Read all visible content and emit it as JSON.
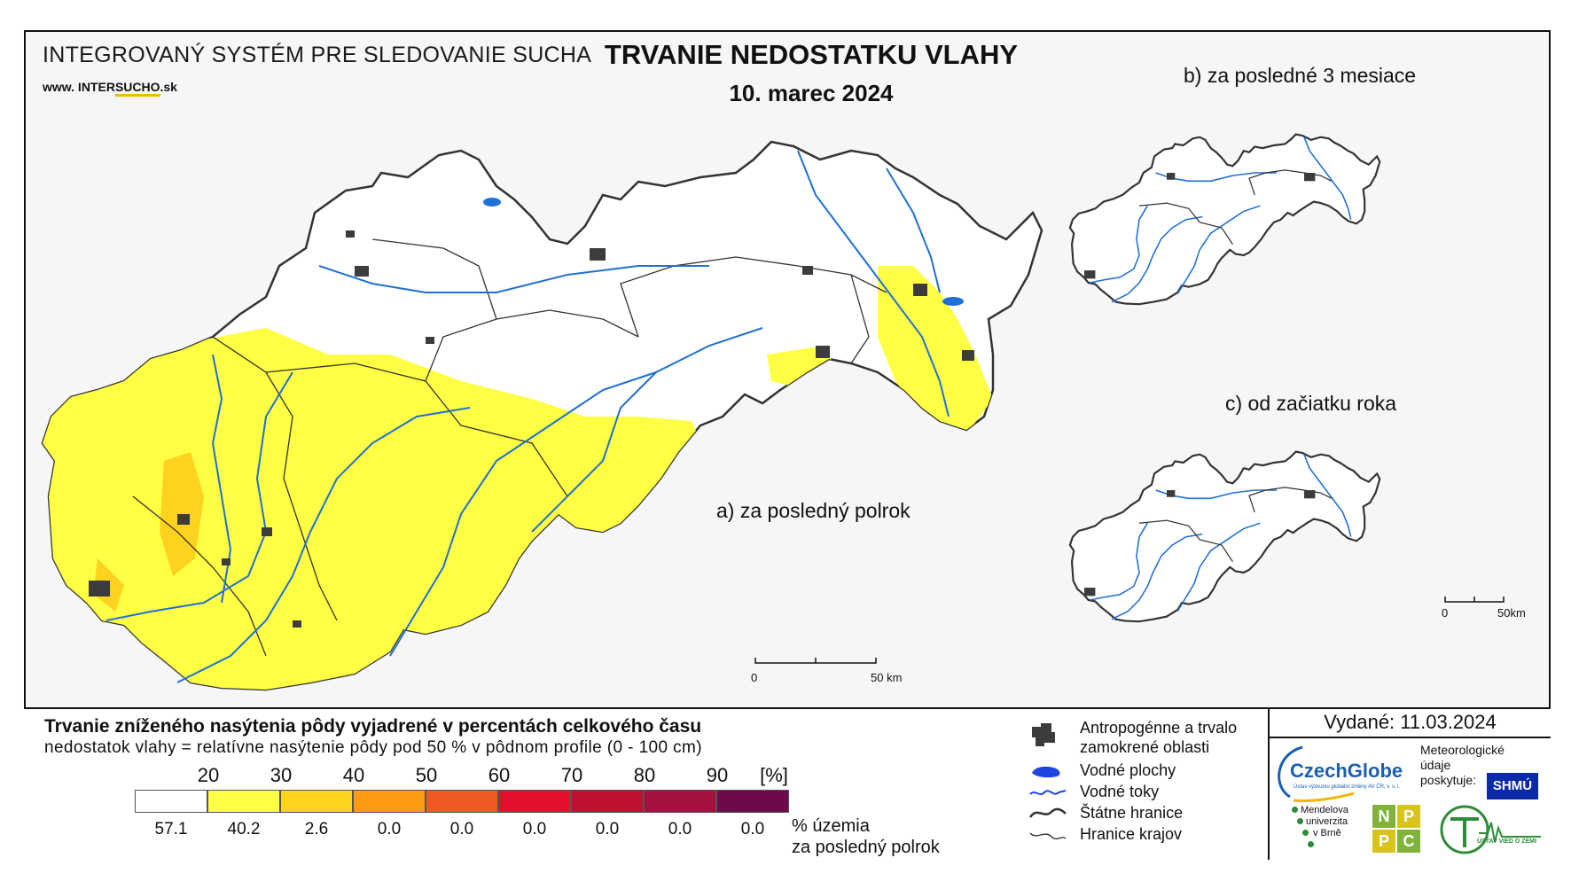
{
  "header": {
    "org_title": "INTEGROVANÝ SYSTÉM PRE SLEDOVANIE SUCHA",
    "url_prefix": "www. INTER",
    "url_highlight": "SUCHO",
    "url_suffix": ".sk",
    "map_title": "TRVANIE NEDOSTATKU VLAHY",
    "map_date": "10. marec 2024"
  },
  "panels": {
    "a": "a) za posledný polrok",
    "b": "b) za posledné 3 mesiace",
    "c": "c) od začiatku roka"
  },
  "scales": {
    "main": {
      "zero": "0",
      "end": "50 km"
    },
    "small": {
      "zero": "0",
      "end": "50km"
    }
  },
  "legend": {
    "title": "Trvanie zníženého nasýtenia pôdy vyjadrené v percentách celkového času",
    "subtitle": "nedostatok vlahy = relatívne nasýtenie pôdy pod 50 % v pôdnom profile (0 - 100 cm)",
    "ticks": [
      "20",
      "30",
      "40",
      "50",
      "60",
      "70",
      "80",
      "90",
      "[%]"
    ],
    "classes": [
      {
        "color": "#ffffff",
        "pct": "57.1"
      },
      {
        "color": "#ffff44",
        "pct": "40.2"
      },
      {
        "color": "#ffd21f",
        "pct": "2.6"
      },
      {
        "color": "#ff9a14",
        "pct": "0.0"
      },
      {
        "color": "#ef5a22",
        "pct": "0.0"
      },
      {
        "color": "#e6102c",
        "pct": "0.0"
      },
      {
        "color": "#c01032",
        "pct": "0.0"
      },
      {
        "color": "#a5103e",
        "pct": "0.0"
      },
      {
        "color": "#6e0a4a",
        "pct": "0.0"
      }
    ],
    "pct_caption_1": "% územia",
    "pct_caption_2": "za posledný polrok",
    "symbols": [
      {
        "label": "Antropogénne a trvalo",
        "label2": "zamokrené oblasti",
        "icon": "urban-area-icon"
      },
      {
        "label": "Vodné plochy",
        "icon": "water-body-icon"
      },
      {
        "label": "Vodné toky",
        "icon": "river-icon"
      },
      {
        "label": "Štátne hranice",
        "icon": "state-border-icon"
      },
      {
        "label": "Hranice krajov",
        "icon": "region-border-icon"
      }
    ]
  },
  "footer": {
    "issued": "Vydané: 11.03.2024",
    "czechglobe": "CzechGlobe",
    "czechglobe_sub": "Ústav výzkumu globální změny AV ČR, v. v. i.",
    "shmu_text_1": "Meteorologické",
    "shmu_text_2": "údaje",
    "shmu_text_3": "poskytuje:",
    "shmu": "SHMÚ",
    "mendel_1": "Mendelova",
    "mendel_2": "univerzita",
    "mendel_3": "v Brně",
    "nppc": [
      "N",
      "P",
      "P",
      "C"
    ],
    "usvz": "ÚSTAV VIED O ZEMI"
  },
  "colors": {
    "river": "#1f6fd6",
    "border": "#333333",
    "urban": "#3c3c3c",
    "yellow": "#ffff44",
    "amber": "#ffd21f"
  }
}
